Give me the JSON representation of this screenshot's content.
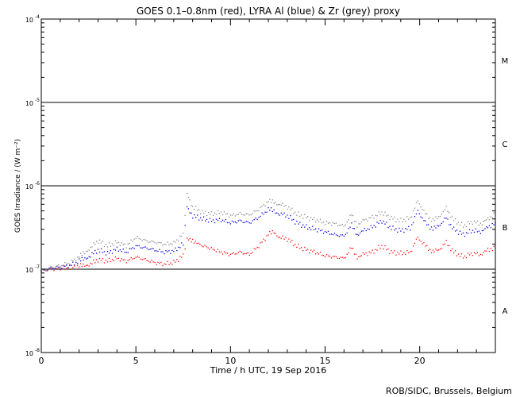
{
  "chart_data": {
    "type": "scatter",
    "title": "GOES 0.1–0.8nm (red), LYRA Al (blue) & Zr (grey) proxy",
    "xlabel": "Time / h UTC, 19 Sep 2016",
    "ylabel": "GOES Irradiance / (W m⁻²)",
    "xlim": [
      0,
      24
    ],
    "ylim": [
      1e-08,
      0.0001
    ],
    "yscale": "log",
    "grid": false,
    "x_ticks": [
      0,
      5,
      10,
      15,
      20
    ],
    "x_tick_labels": [
      "0",
      "5",
      "10",
      "15",
      "20"
    ],
    "y_ticks": [
      {
        "value": 0.0001,
        "base": "10",
        "exp": "-4"
      },
      {
        "value": 1e-05,
        "base": "10",
        "exp": "-5"
      },
      {
        "value": 1e-06,
        "base": "10",
        "exp": "-6"
      },
      {
        "value": 1e-07,
        "base": "10",
        "exp": "-7"
      },
      {
        "value": 1e-08,
        "base": "10",
        "exp": "-8"
      }
    ],
    "flare_levels": [
      1e-05,
      1e-06,
      1e-07
    ],
    "flare_classes": [
      {
        "label": "M",
        "value": 3.2e-05
      },
      {
        "label": "C",
        "value": 3.2e-06
      },
      {
        "label": "B",
        "value": 3.2e-07
      },
      {
        "label": "A",
        "value": 3.2e-08
      }
    ],
    "series": [
      {
        "color": "#ff0000",
        "x": [
          0,
          0.5,
          1.0,
          1.5,
          2.0,
          2.3,
          2.6,
          3.0,
          3.5,
          4.0,
          4.5,
          5.0,
          5.5,
          6.0,
          6.5,
          7.0,
          7.5,
          7.7,
          8.0,
          8.3,
          9.5,
          10.0,
          10.5,
          11.0,
          11.5,
          12.0,
          12.3,
          12.6,
          13.0,
          13.5,
          14.0,
          14.5,
          15.0,
          15.5,
          16.0,
          16.4,
          16.7,
          17.0,
          17.5,
          18.0,
          18.5,
          19.0,
          19.5,
          19.9,
          20.3,
          20.7,
          21.0,
          21.4,
          21.8,
          22.3,
          22.8,
          23.3,
          23.6,
          24.0
        ],
        "y": [
          9.5e-08,
          1e-07,
          1.02e-07,
          1.05e-07,
          1.08e-07,
          1.12e-07,
          1.15e-07,
          1.3e-07,
          1.25e-07,
          1.35e-07,
          1.25e-07,
          1.4e-07,
          1.3e-07,
          1.2e-07,
          1.15e-07,
          1.2e-07,
          1.45e-07,
          2.3e-07,
          2.25e-07,
          2e-07,
          1.6e-07,
          1.5e-07,
          1.6e-07,
          1.5e-07,
          1.9e-07,
          2.6e-07,
          2.8e-07,
          2.4e-07,
          2.3e-07,
          1.9e-07,
          1.7e-07,
          1.6e-07,
          1.45e-07,
          1.4e-07,
          1.35e-07,
          1.8e-07,
          1.4e-07,
          1.5e-07,
          1.6e-07,
          1.9e-07,
          1.6e-07,
          1.55e-07,
          1.6e-07,
          2.4e-07,
          1.9e-07,
          1.6e-07,
          1.7e-07,
          2.1e-07,
          1.6e-07,
          1.4e-07,
          1.55e-07,
          1.5e-07,
          1.7e-07,
          1.8e-07
        ]
      },
      {
        "color": "#0000dd",
        "x": [
          0,
          0.5,
          1.0,
          1.5,
          2.0,
          2.3,
          2.6,
          3.0,
          3.5,
          4.0,
          4.5,
          5.0,
          5.5,
          6.0,
          6.5,
          7.0,
          7.5,
          7.7,
          8.0,
          8.5,
          9.0,
          9.5,
          10.0,
          10.5,
          11.0,
          11.5,
          12.0,
          12.3,
          12.6,
          13.0,
          13.5,
          14.0,
          14.5,
          15.0,
          15.5,
          16.0,
          16.4,
          16.7,
          17.0,
          17.5,
          18.0,
          18.5,
          19.0,
          19.5,
          19.9,
          20.3,
          20.7,
          21.0,
          21.4,
          21.8,
          22.3,
          22.8,
          23.3,
          23.6,
          24.0
        ],
        "y": [
          9.5e-08,
          1.02e-07,
          1.05e-07,
          1.1e-07,
          1.25e-07,
          1.35e-07,
          1.45e-07,
          1.7e-07,
          1.55e-07,
          1.75e-07,
          1.6e-07,
          1.9e-07,
          1.8e-07,
          1.7e-07,
          1.6e-07,
          1.65e-07,
          2e-07,
          5.5e-07,
          4.4e-07,
          4e-07,
          3.8e-07,
          3.9e-07,
          3.6e-07,
          3.8e-07,
          3.6e-07,
          4.2e-07,
          5.2e-07,
          5e-07,
          4.6e-07,
          4.4e-07,
          3.6e-07,
          3.2e-07,
          3e-07,
          2.8e-07,
          2.6e-07,
          2.5e-07,
          3.4e-07,
          2.6e-07,
          2.9e-07,
          3.2e-07,
          3.8e-07,
          3.1e-07,
          2.9e-07,
          3.1e-07,
          5e-07,
          3.6e-07,
          3e-07,
          3.3e-07,
          4.1e-07,
          3e-07,
          2.6e-07,
          2.9e-07,
          2.8e-07,
          3.2e-07,
          3.6e-07
        ]
      },
      {
        "color": "#888888",
        "x": [
          0,
          0.5,
          1.0,
          1.5,
          2.0,
          2.3,
          2.6,
          3.0,
          3.5,
          4.0,
          4.5,
          5.0,
          5.5,
          6.0,
          6.5,
          7.0,
          7.5,
          7.7,
          8.0,
          8.5,
          9.0,
          9.5,
          10.0,
          10.5,
          11.0,
          11.5,
          12.0,
          12.3,
          12.6,
          13.0,
          13.5,
          14.0,
          14.5,
          15.0,
          15.5,
          16.0,
          16.4,
          16.7,
          17.0,
          17.5,
          18.0,
          18.5,
          19.0,
          19.5,
          19.9,
          20.3,
          20.7,
          21.0,
          21.4,
          21.8,
          22.3,
          22.8,
          23.3,
          23.6,
          24.0
        ],
        "y": [
          9.5e-08,
          1.05e-07,
          1.1e-07,
          1.2e-07,
          1.4e-07,
          1.6e-07,
          1.8e-07,
          2.2e-07,
          1.9e-07,
          2.1e-07,
          1.9e-07,
          2.4e-07,
          2.2e-07,
          2.1e-07,
          2e-07,
          2.05e-07,
          2.6e-07,
          8e-07,
          5.6e-07,
          4.8e-07,
          4.6e-07,
          4.8e-07,
          4.4e-07,
          4.6e-07,
          4.5e-07,
          5.2e-07,
          6.5e-07,
          6.4e-07,
          6e-07,
          5.6e-07,
          4.6e-07,
          4.2e-07,
          3.9e-07,
          3.6e-07,
          3.5e-07,
          3.3e-07,
          4.5e-07,
          3.4e-07,
          3.8e-07,
          4.2e-07,
          4.8e-07,
          4.1e-07,
          3.8e-07,
          4.1e-07,
          6.6e-07,
          4.6e-07,
          3.8e-07,
          4.2e-07,
          5.4e-07,
          3.9e-07,
          3.3e-07,
          3.7e-07,
          3.5e-07,
          4e-07,
          4.6e-07
        ]
      }
    ]
  },
  "footer": {
    "credit": "ROB/SIDC, Brussels, Belgium"
  }
}
